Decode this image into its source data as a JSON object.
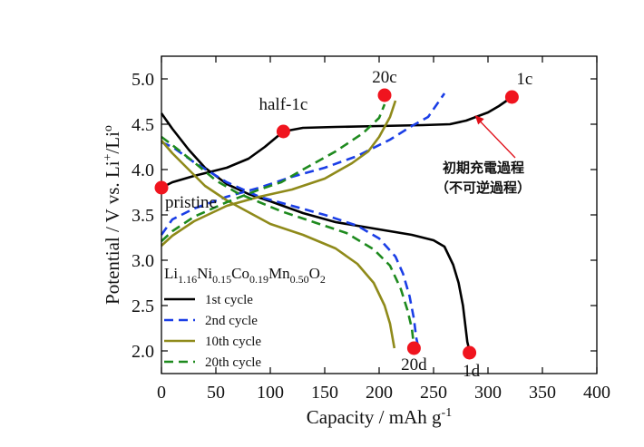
{
  "chart_data": {
    "type": "line",
    "xlabel": "Capacity / mAh g",
    "xlabel_sup": "-1",
    "ylabel": "Potential / V vs. Li",
    "ylabel_sup": "+",
    "ylabel_tail": "/Li",
    "ylabel_tail_sup": "o",
    "xlim": [
      0,
      400
    ],
    "ylim": [
      1.75,
      5.25
    ],
    "xticks": [
      0,
      50,
      100,
      150,
      200,
      250,
      300,
      350,
      400
    ],
    "yticks": [
      2.0,
      2.5,
      3.0,
      3.5,
      4.0,
      4.5,
      5.0
    ],
    "grid": false,
    "legend_position": "bottom-left",
    "formula": {
      "parts": [
        {
          "t": "Li",
          "s": "normal"
        },
        {
          "t": "1.16",
          "s": "sub"
        },
        {
          "t": "Ni",
          "s": "normal"
        },
        {
          "t": "0.15",
          "s": "sub"
        },
        {
          "t": "Co",
          "s": "normal"
        },
        {
          "t": "0.19",
          "s": "sub"
        },
        {
          "t": "Mn",
          "s": "normal"
        },
        {
          "t": "0.50",
          "s": "sub"
        },
        {
          "t": "O",
          "s": "normal"
        },
        {
          "t": "2",
          "s": "sub"
        }
      ]
    },
    "series": [
      {
        "name": "1st cycle",
        "color": "#000000",
        "dash": "solid",
        "charge": [
          [
            0,
            3.8
          ],
          [
            10,
            3.86
          ],
          [
            30,
            3.93
          ],
          [
            60,
            4.02
          ],
          [
            80,
            4.12
          ],
          [
            95,
            4.25
          ],
          [
            105,
            4.35
          ],
          [
            112,
            4.42
          ],
          [
            130,
            4.46
          ],
          [
            160,
            4.47
          ],
          [
            200,
            4.48
          ],
          [
            240,
            4.49
          ],
          [
            265,
            4.5
          ],
          [
            280,
            4.54
          ],
          [
            300,
            4.63
          ],
          [
            310,
            4.7
          ],
          [
            322,
            4.8
          ]
        ],
        "discharge": [
          [
            0,
            4.62
          ],
          [
            10,
            4.45
          ],
          [
            25,
            4.22
          ],
          [
            40,
            4.02
          ],
          [
            60,
            3.84
          ],
          [
            80,
            3.73
          ],
          [
            100,
            3.65
          ],
          [
            130,
            3.52
          ],
          [
            160,
            3.42
          ],
          [
            200,
            3.34
          ],
          [
            230,
            3.28
          ],
          [
            250,
            3.22
          ],
          [
            260,
            3.15
          ],
          [
            268,
            2.95
          ],
          [
            273,
            2.75
          ],
          [
            277,
            2.5
          ],
          [
            279,
            2.3
          ],
          [
            281,
            2.1
          ],
          [
            282,
            2.05
          ]
        ]
      },
      {
        "name": "2nd cycle",
        "color": "#1a3ee6",
        "dash": "dash",
        "charge": [
          [
            0,
            3.28
          ],
          [
            10,
            3.45
          ],
          [
            30,
            3.57
          ],
          [
            60,
            3.7
          ],
          [
            90,
            3.8
          ],
          [
            120,
            3.92
          ],
          [
            150,
            4.02
          ],
          [
            180,
            4.15
          ],
          [
            210,
            4.33
          ],
          [
            230,
            4.48
          ],
          [
            245,
            4.58
          ],
          [
            260,
            4.84
          ]
        ],
        "discharge": [
          [
            0,
            4.3
          ],
          [
            10,
            4.25
          ],
          [
            30,
            4.08
          ],
          [
            60,
            3.86
          ],
          [
            90,
            3.7
          ],
          [
            120,
            3.6
          ],
          [
            150,
            3.5
          ],
          [
            180,
            3.38
          ],
          [
            200,
            3.24
          ],
          [
            215,
            3.04
          ],
          [
            222,
            2.85
          ],
          [
            228,
            2.6
          ],
          [
            232,
            2.35
          ],
          [
            234,
            2.15
          ],
          [
            236,
            2.04
          ]
        ]
      },
      {
        "name": "10th cycle",
        "color": "#8f8a1a",
        "dash": "solid",
        "charge": [
          [
            0,
            3.16
          ],
          [
            10,
            3.27
          ],
          [
            30,
            3.43
          ],
          [
            60,
            3.6
          ],
          [
            90,
            3.7
          ],
          [
            120,
            3.78
          ],
          [
            150,
            3.9
          ],
          [
            175,
            4.07
          ],
          [
            190,
            4.2
          ],
          [
            200,
            4.36
          ],
          [
            210,
            4.58
          ],
          [
            215,
            4.76
          ]
        ],
        "discharge": [
          [
            0,
            4.32
          ],
          [
            10,
            4.18
          ],
          [
            25,
            4.0
          ],
          [
            40,
            3.82
          ],
          [
            60,
            3.66
          ],
          [
            80,
            3.53
          ],
          [
            100,
            3.4
          ],
          [
            130,
            3.28
          ],
          [
            160,
            3.13
          ],
          [
            180,
            2.96
          ],
          [
            195,
            2.75
          ],
          [
            205,
            2.5
          ],
          [
            210,
            2.3
          ],
          [
            214,
            2.03
          ]
        ]
      },
      {
        "name": "20th cycle",
        "color": "#1e8a1e",
        "dash": "dash",
        "charge": [
          [
            0,
            3.21
          ],
          [
            10,
            3.32
          ],
          [
            30,
            3.48
          ],
          [
            60,
            3.64
          ],
          [
            90,
            3.78
          ],
          [
            110,
            3.86
          ],
          [
            130,
            4.0
          ],
          [
            160,
            4.2
          ],
          [
            185,
            4.4
          ],
          [
            200,
            4.57
          ],
          [
            205,
            4.72
          ]
        ],
        "discharge": [
          [
            0,
            4.36
          ],
          [
            10,
            4.27
          ],
          [
            30,
            4.08
          ],
          [
            50,
            3.88
          ],
          [
            70,
            3.74
          ],
          [
            90,
            3.64
          ],
          [
            110,
            3.54
          ],
          [
            140,
            3.42
          ],
          [
            170,
            3.3
          ],
          [
            195,
            3.12
          ],
          [
            210,
            2.94
          ],
          [
            220,
            2.68
          ],
          [
            226,
            2.45
          ],
          [
            230,
            2.25
          ],
          [
            232,
            2.05
          ]
        ]
      }
    ],
    "markers": [
      {
        "label": "pristine",
        "x": 0,
        "y": 3.8
      },
      {
        "label": "half-1c",
        "x": 112,
        "y": 4.42
      },
      {
        "label": "20c",
        "x": 205,
        "y": 4.82
      },
      {
        "label": "1c",
        "x": 322,
        "y": 4.8
      },
      {
        "label": "20d",
        "x": 232,
        "y": 2.03
      },
      {
        "label": "1d",
        "x": 283,
        "y": 1.98
      }
    ],
    "annotation": {
      "line1": "初期充電過程",
      "line2": "（不可逆過程）",
      "arrow_target": {
        "x": 288,
        "y": 4.6
      }
    }
  }
}
